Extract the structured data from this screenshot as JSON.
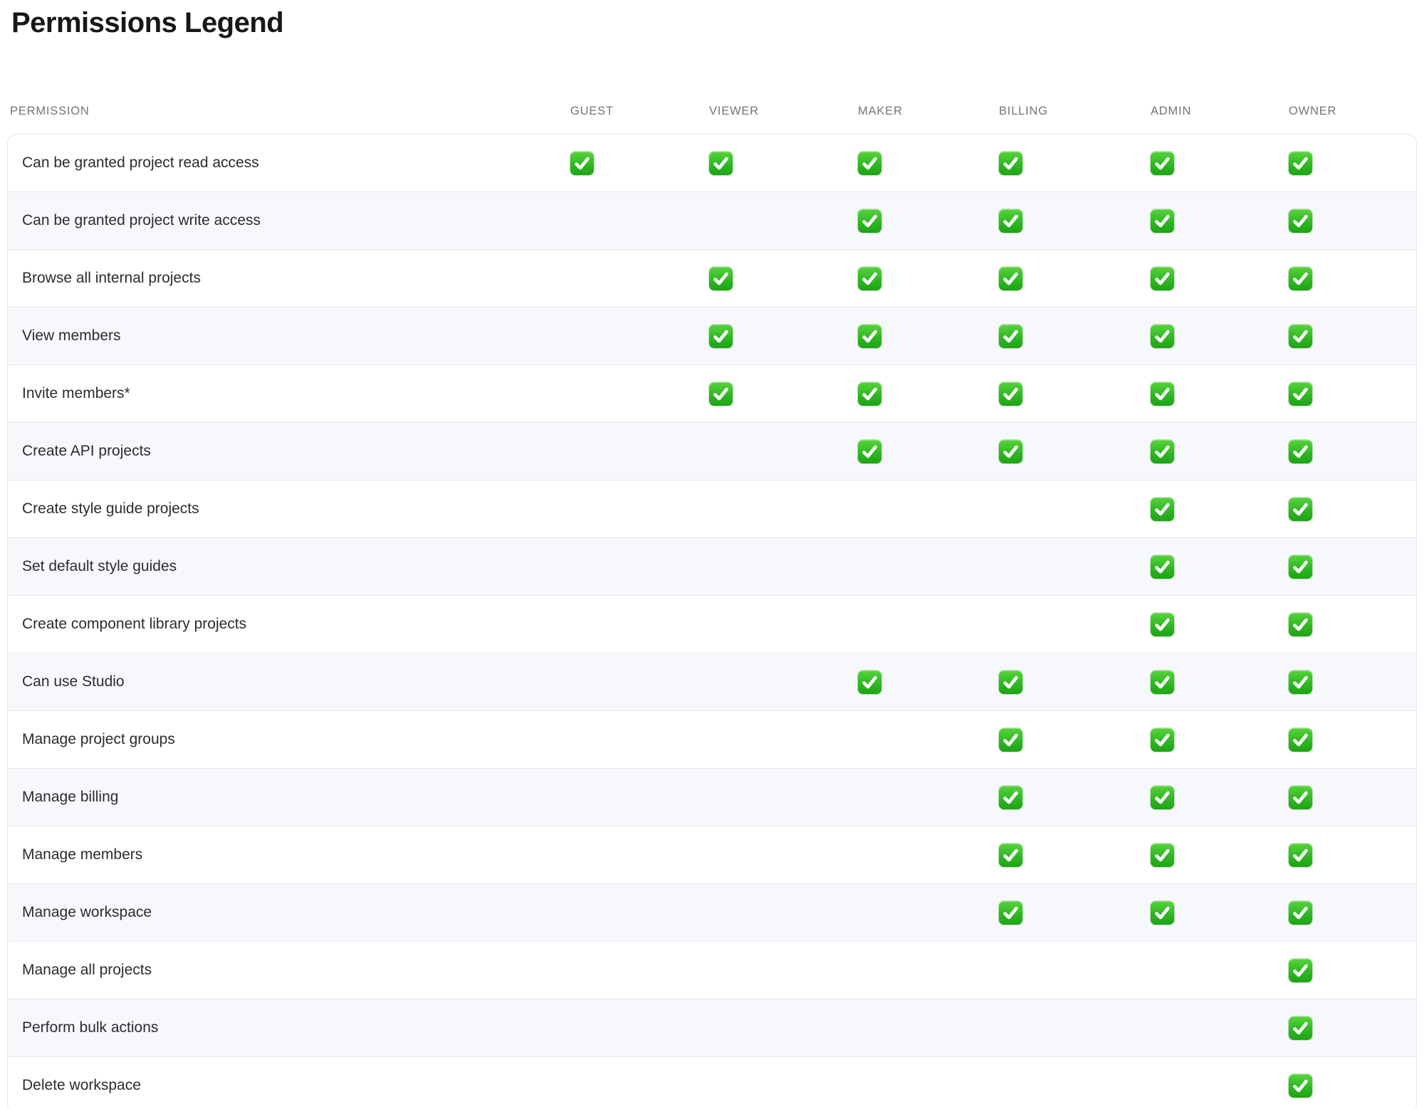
{
  "page": {
    "title": "Permissions Legend"
  },
  "table": {
    "permission_header": "PERMISSION",
    "columns": [
      "GUEST",
      "VIEWER",
      "MAKER",
      "BILLING",
      "ADMIN",
      "OWNER"
    ],
    "check_icon": "white-heavy-check-mark-emoji",
    "colors": {
      "check_green": "#2fb824",
      "alt_row_background": "#f7f8fb",
      "row_border": "#e4e7f0",
      "header_text": "#74747b",
      "row_text": "#2b2b31",
      "title_text": "#17171a"
    },
    "rows": [
      {
        "label": "Can be granted project read access",
        "checks": [
          true,
          true,
          true,
          true,
          true,
          true
        ]
      },
      {
        "label": "Can be granted project write access",
        "checks": [
          false,
          false,
          true,
          true,
          true,
          true
        ]
      },
      {
        "label": "Browse all internal projects",
        "checks": [
          false,
          true,
          true,
          true,
          true,
          true
        ]
      },
      {
        "label": "View members",
        "checks": [
          false,
          true,
          true,
          true,
          true,
          true
        ]
      },
      {
        "label": "Invite members*",
        "checks": [
          false,
          true,
          true,
          true,
          true,
          true
        ]
      },
      {
        "label": "Create API projects",
        "checks": [
          false,
          false,
          true,
          true,
          true,
          true
        ]
      },
      {
        "label": "Create style guide projects",
        "checks": [
          false,
          false,
          false,
          false,
          true,
          true
        ]
      },
      {
        "label": "Set default style guides",
        "checks": [
          false,
          false,
          false,
          false,
          true,
          true
        ]
      },
      {
        "label": "Create component library projects",
        "checks": [
          false,
          false,
          false,
          false,
          true,
          true
        ]
      },
      {
        "label": "Can use Studio",
        "checks": [
          false,
          false,
          true,
          true,
          true,
          true
        ]
      },
      {
        "label": "Manage project groups",
        "checks": [
          false,
          false,
          false,
          true,
          true,
          true
        ]
      },
      {
        "label": "Manage billing",
        "checks": [
          false,
          false,
          false,
          true,
          true,
          true
        ]
      },
      {
        "label": "Manage members",
        "checks": [
          false,
          false,
          false,
          true,
          true,
          true
        ]
      },
      {
        "label": "Manage workspace",
        "checks": [
          false,
          false,
          false,
          true,
          true,
          true
        ]
      },
      {
        "label": "Manage all projects",
        "checks": [
          false,
          false,
          false,
          false,
          false,
          true
        ]
      },
      {
        "label": "Perform bulk actions",
        "checks": [
          false,
          false,
          false,
          false,
          false,
          true
        ]
      },
      {
        "label": "Delete workspace",
        "checks": [
          false,
          false,
          false,
          false,
          false,
          true
        ]
      }
    ]
  }
}
